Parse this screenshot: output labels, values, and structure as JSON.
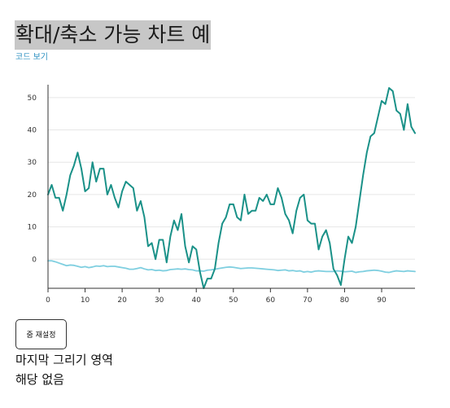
{
  "page": {
    "title": "확대/축소 가능 차트 예",
    "code_link": "코드 보기"
  },
  "controls": {
    "reset_zoom_label": "줌 재설정"
  },
  "status": {
    "last_area_label": "마지막 그리기 영역",
    "last_area_value": "해당 없음"
  },
  "colors": {
    "series_a": "#1a9188",
    "series_b": "#7fcfe0",
    "grid": "#e6e6e6",
    "axis": "#333333",
    "title_highlight": "#c7c7c7",
    "link": "#2a8fc0"
  },
  "chart_data": {
    "type": "line",
    "title": "",
    "xlabel": "",
    "ylabel": "",
    "xlim": [
      0,
      99
    ],
    "ylim": [
      -9,
      54
    ],
    "grid": true,
    "x_ticks": [
      0,
      10,
      20,
      30,
      40,
      50,
      60,
      70,
      80,
      90
    ],
    "y_ticks": [
      0,
      10,
      20,
      30,
      40,
      50
    ],
    "series": [
      {
        "color": "#1a9188",
        "x": [
          0,
          1,
          2,
          3,
          4,
          5,
          6,
          7,
          8,
          9,
          10,
          11,
          12,
          13,
          14,
          15,
          16,
          17,
          18,
          19,
          20,
          21,
          22,
          23,
          24,
          25,
          26,
          27,
          28,
          29,
          30,
          31,
          32,
          33,
          34,
          35,
          36,
          37,
          38,
          39,
          40,
          41,
          42,
          43,
          44,
          45,
          46,
          47,
          48,
          49,
          50,
          51,
          52,
          53,
          54,
          55,
          56,
          57,
          58,
          59,
          60,
          61,
          62,
          63,
          64,
          65,
          66,
          67,
          68,
          69,
          70,
          71,
          72,
          73,
          74,
          75,
          76,
          77,
          78,
          79,
          80,
          81,
          82,
          83,
          84,
          85,
          86,
          87,
          88,
          89,
          90,
          91,
          92,
          93,
          94,
          95,
          96,
          97,
          98,
          99
        ],
        "y": [
          20,
          23,
          19,
          19,
          15,
          20,
          26,
          29,
          33,
          28,
          21,
          22,
          30,
          24,
          28,
          28,
          20,
          23,
          19,
          16,
          21,
          24,
          23,
          22,
          15,
          18,
          13,
          4,
          5,
          0,
          6,
          6,
          -1,
          7,
          12,
          9,
          14,
          4,
          -1,
          4,
          3,
          -4,
          -9,
          -6,
          -6,
          -3,
          5,
          11,
          13,
          17,
          17,
          13,
          12,
          20,
          14,
          15,
          15,
          19,
          18,
          20,
          17,
          17,
          22,
          19,
          14,
          12,
          8,
          15,
          19,
          20,
          12,
          11,
          11,
          3,
          7,
          9,
          5,
          -3,
          -5,
          -8,
          0,
          7,
          5,
          10,
          18,
          26,
          33,
          38,
          39,
          44,
          49,
          48,
          53,
          52,
          46,
          45,
          40,
          48,
          41,
          39
        ]
      },
      {
        "color": "#7fcfe0",
        "x": [
          0,
          1,
          2,
          3,
          4,
          5,
          6,
          7,
          8,
          9,
          10,
          11,
          12,
          13,
          14,
          15,
          16,
          17,
          18,
          19,
          20,
          21,
          22,
          23,
          24,
          25,
          26,
          27,
          28,
          29,
          30,
          31,
          32,
          33,
          34,
          35,
          36,
          37,
          38,
          39,
          40,
          41,
          42,
          43,
          44,
          45,
          46,
          47,
          48,
          49,
          50,
          51,
          52,
          53,
          54,
          55,
          56,
          57,
          58,
          59,
          60,
          61,
          62,
          63,
          64,
          65,
          66,
          67,
          68,
          69,
          70,
          71,
          72,
          73,
          74,
          75,
          76,
          77,
          78,
          79,
          80,
          81,
          82,
          83,
          84,
          85,
          86,
          87,
          88,
          89,
          90,
          91,
          92,
          93,
          94,
          95,
          96,
          97,
          98,
          99
        ],
        "y": [
          -0.5,
          -0.5,
          -0.8,
          -1.2,
          -1.6,
          -2.0,
          -1.8,
          -1.9,
          -2.2,
          -2.5,
          -2.3,
          -2.6,
          -2.4,
          -2.1,
          -2.2,
          -2.0,
          -2.3,
          -2.2,
          -2.2,
          -2.4,
          -2.6,
          -2.8,
          -3.1,
          -3.1,
          -2.9,
          -2.6,
          -3.0,
          -3.3,
          -3.2,
          -3.5,
          -3.4,
          -3.6,
          -3.5,
          -3.2,
          -3.1,
          -3.0,
          -3.1,
          -3.0,
          -3.2,
          -3.3,
          -3.6,
          -3.6,
          -3.7,
          -3.4,
          -3.3,
          -3.1,
          -2.9,
          -2.7,
          -2.5,
          -2.4,
          -2.5,
          -2.7,
          -2.9,
          -2.8,
          -2.7,
          -2.7,
          -2.8,
          -2.9,
          -3.0,
          -3.1,
          -3.2,
          -3.3,
          -3.5,
          -3.4,
          -3.3,
          -3.6,
          -3.5,
          -3.7,
          -3.6,
          -4.0,
          -3.8,
          -4.0,
          -3.7,
          -3.6,
          -3.7,
          -3.8,
          -3.8,
          -3.8,
          -3.6,
          -3.7,
          -3.9,
          -3.8,
          -3.7,
          -4.1,
          -3.9,
          -3.8,
          -3.6,
          -3.5,
          -3.4,
          -3.5,
          -3.7,
          -4.0,
          -4.1,
          -3.8,
          -3.6,
          -3.7,
          -3.8,
          -3.6,
          -3.7,
          -3.8
        ]
      }
    ]
  }
}
